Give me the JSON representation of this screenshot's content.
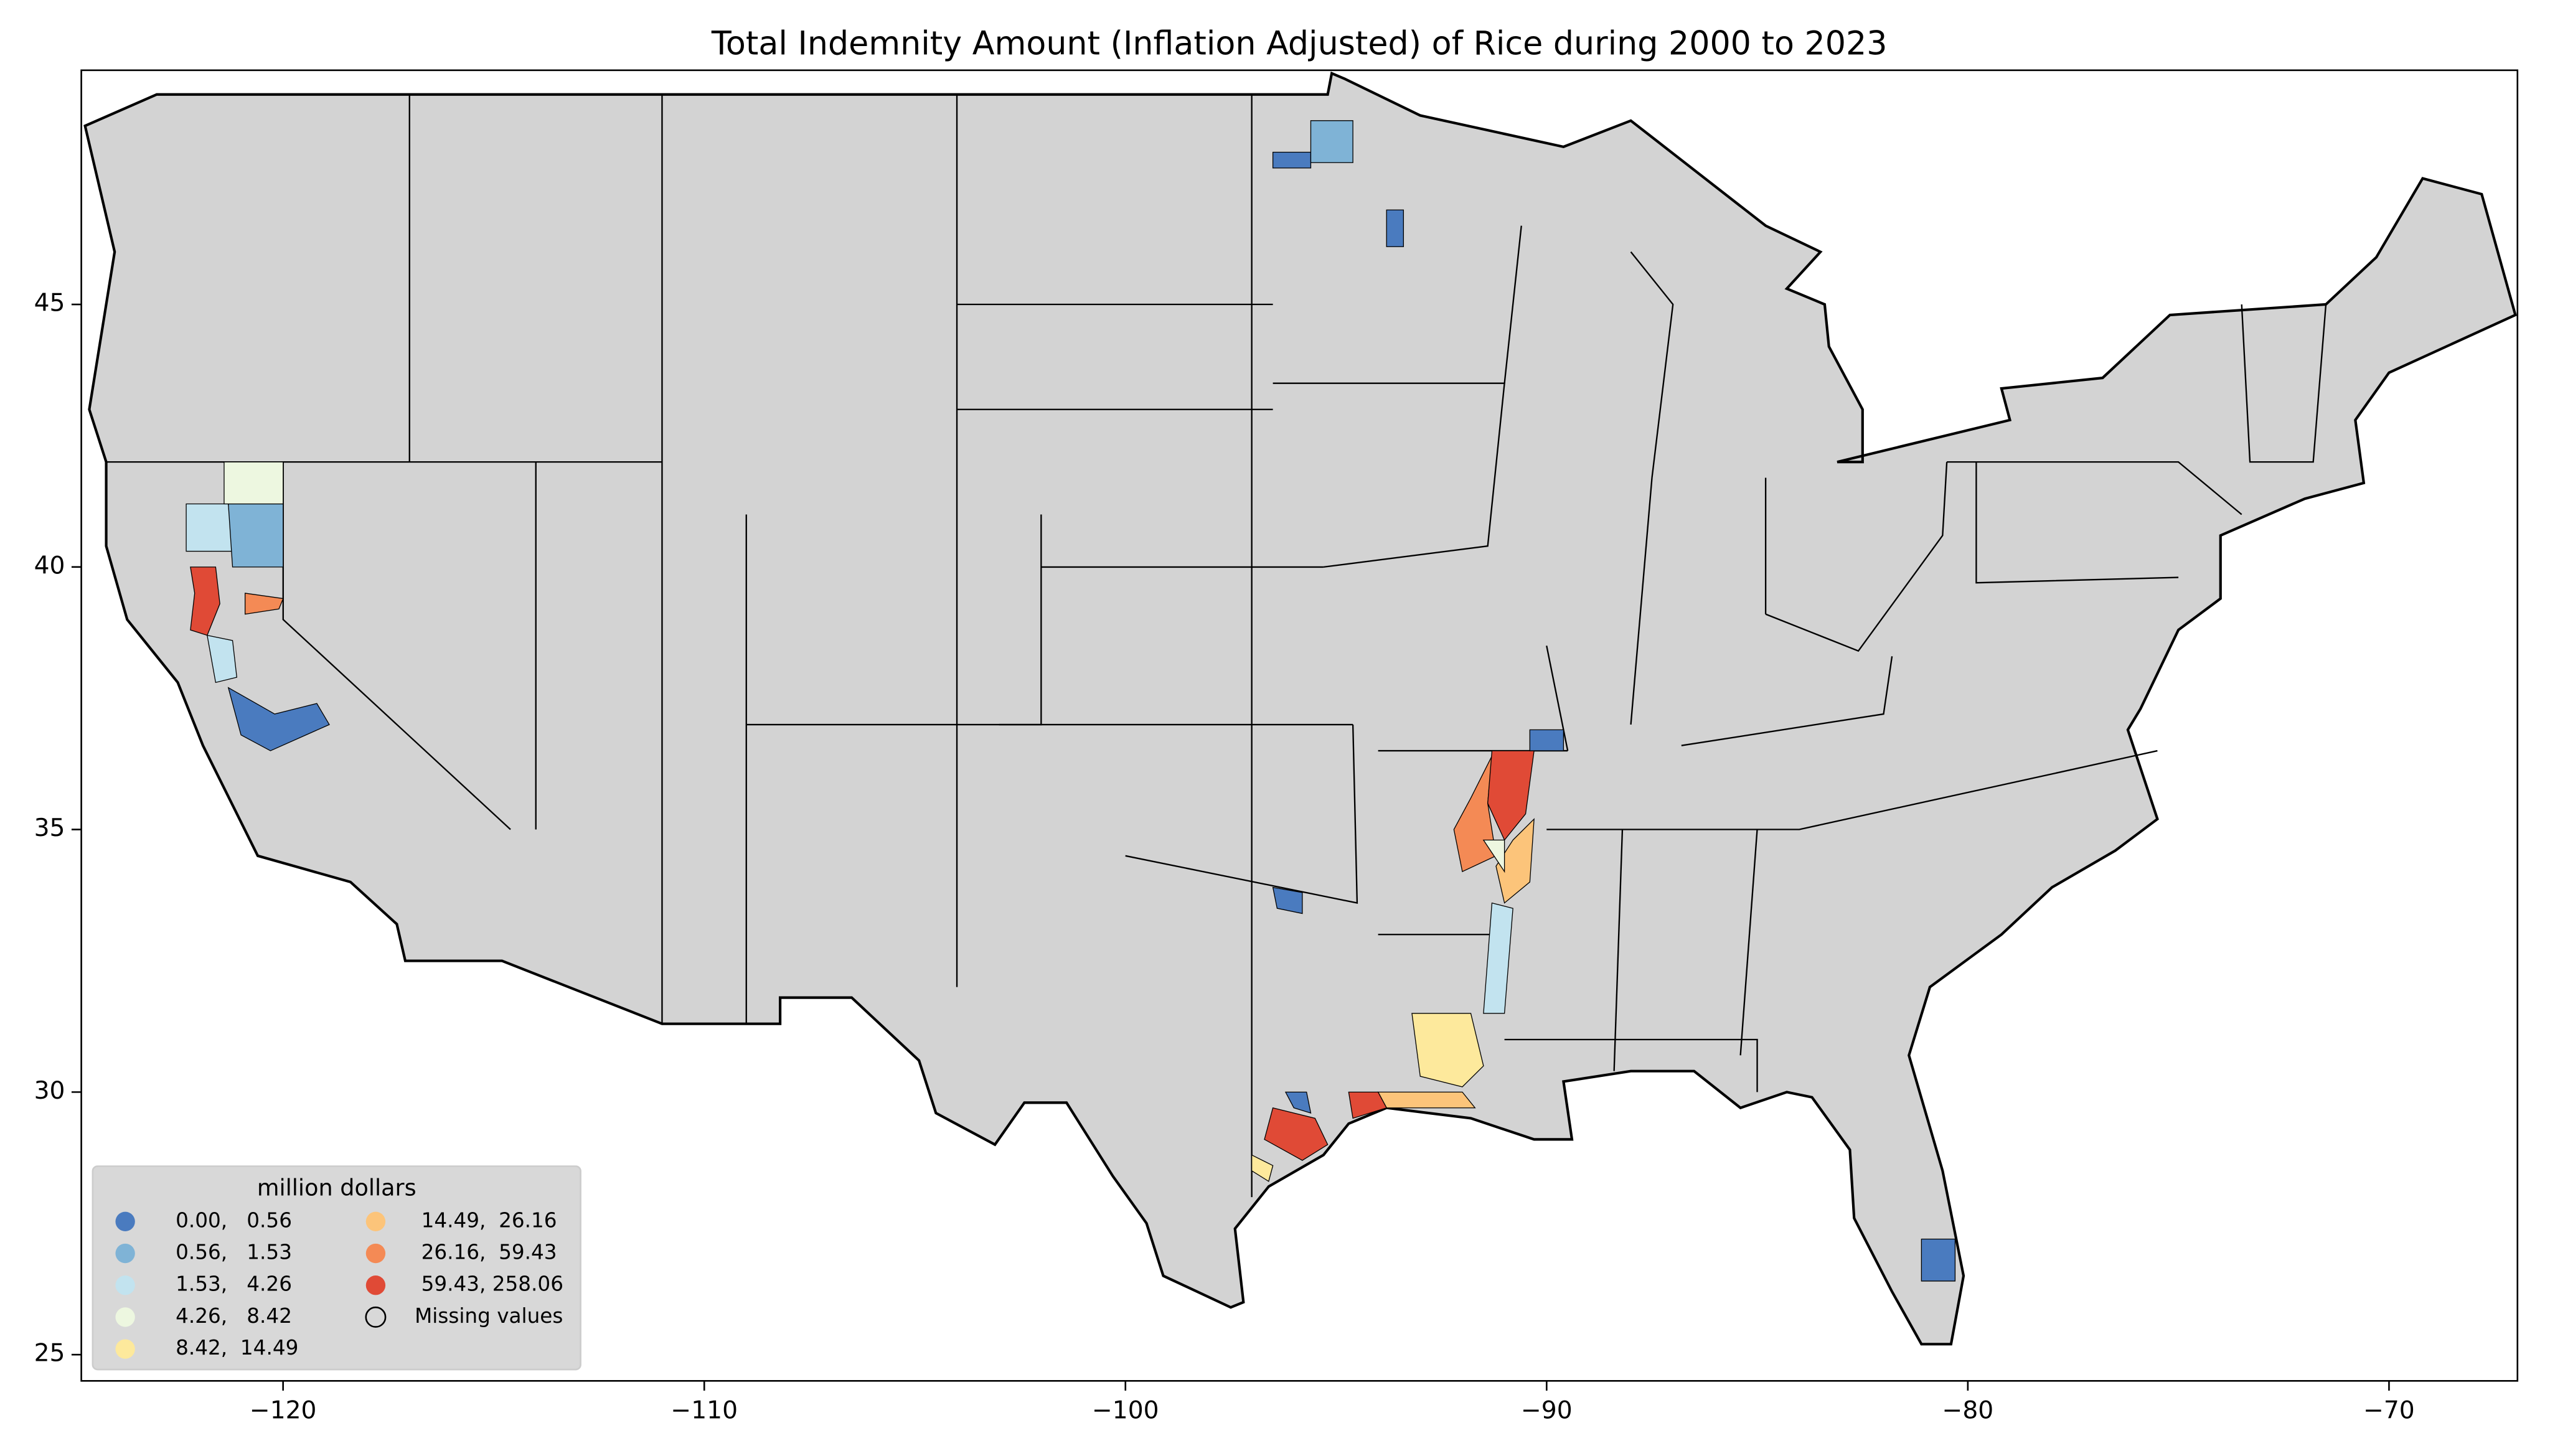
{
  "chart_data": {
    "type": "choropleth",
    "title": "Total Indemnity Amount  (Inflation Adjusted) of Rice during 2000 to 2023",
    "xlim": [
      -124.79,
      -66.95
    ],
    "ylim": [
      24.5,
      49.46
    ],
    "xticks": [
      {
        "value": -120,
        "label": "−120"
      },
      {
        "value": -110,
        "label": "−110"
      },
      {
        "value": -100,
        "label": "−100"
      },
      {
        "value": -90,
        "label": "−90"
      },
      {
        "value": -80,
        "label": "−80"
      },
      {
        "value": -70,
        "label": "−70"
      }
    ],
    "yticks": [
      25,
      30,
      35,
      40,
      45
    ],
    "land_color": "#d3d3d3",
    "legend": {
      "title": "million dollars",
      "loc": "lower left",
      "entries": [
        {
          "label": "0.00,   0.56",
          "color": "#4a7bbf"
        },
        {
          "label": "0.56,   1.53",
          "color": "#7fb3d6"
        },
        {
          "label": "1.53,   4.26",
          "color": "#c2e3ef"
        },
        {
          "label": "4.26,   8.42",
          "color": "#edf7e0"
        },
        {
          "label": "8.42,  14.49",
          "color": "#fde99c"
        },
        {
          "label": "14.49,  26.16",
          "color": "#fcc47a"
        },
        {
          "label": "26.16,  59.43",
          "color": "#f48a55"
        },
        {
          "label": "59.43, 258.06",
          "color": "#e04a36"
        }
      ],
      "missing_label": "Missing values"
    }
  }
}
